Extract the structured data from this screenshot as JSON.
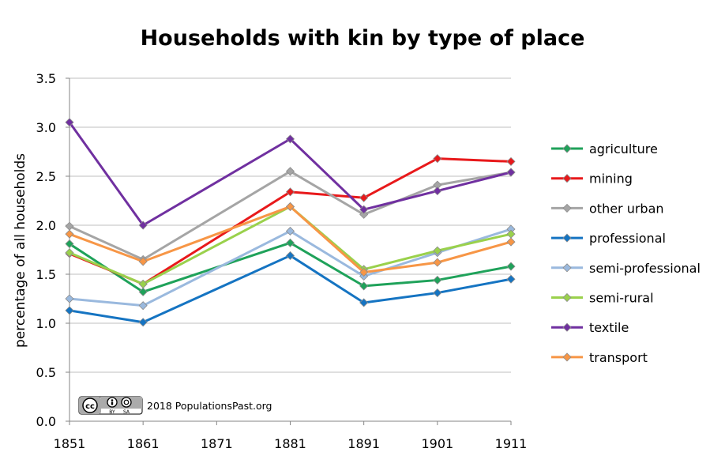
{
  "chart_data": {
    "type": "line",
    "title": "Households with kin by type of place",
    "ylabel": "percentage of all households",
    "xlabel": "",
    "x": [
      1851,
      1861,
      1871,
      1881,
      1891,
      1901,
      1911
    ],
    "x_ticks": [
      "1851",
      "1861",
      "1871",
      "1881",
      "1891",
      "1901",
      "1911"
    ],
    "ylim": [
      0,
      3.5
    ],
    "y_ticks": [
      "0.0",
      "0.5",
      "1.0",
      "1.5",
      "2.0",
      "2.5",
      "3.0",
      "3.5"
    ],
    "grid": "horizontal",
    "legend_position": "right",
    "series": [
      {
        "name": "agriculture",
        "color": "#1fa25a",
        "x": [
          1851,
          1861,
          1881,
          1891,
          1901,
          1911
        ],
        "values": [
          1.81,
          1.32,
          1.82,
          1.38,
          1.44,
          1.58
        ]
      },
      {
        "name": "mining",
        "color": "#e8191b",
        "x": [
          1851,
          1861,
          1881,
          1891,
          1901,
          1911
        ],
        "values": [
          1.71,
          1.4,
          2.34,
          2.28,
          2.68,
          2.65
        ]
      },
      {
        "name": "other urban",
        "color": "#a5a5a5",
        "x": [
          1851,
          1861,
          1881,
          1891,
          1901,
          1911
        ],
        "values": [
          1.99,
          1.65,
          2.55,
          2.11,
          2.41,
          2.54
        ]
      },
      {
        "name": "professional",
        "color": "#1574c2",
        "x": [
          1851,
          1861,
          1881,
          1891,
          1901,
          1911
        ],
        "values": [
          1.13,
          1.01,
          1.69,
          1.21,
          1.31,
          1.45
        ]
      },
      {
        "name": "semi-professional",
        "color": "#9ab9de",
        "x": [
          1851,
          1861,
          1881,
          1891,
          1901,
          1911
        ],
        "values": [
          1.25,
          1.18,
          1.94,
          1.48,
          1.72,
          1.96
        ]
      },
      {
        "name": "semi-rural",
        "color": "#9ad14c",
        "x": [
          1851,
          1861,
          1881,
          1891,
          1901,
          1911
        ],
        "values": [
          1.72,
          1.4,
          2.19,
          1.55,
          1.74,
          1.91
        ]
      },
      {
        "name": "textile",
        "color": "#7030a0",
        "x": [
          1851,
          1861,
          1881,
          1891,
          1901,
          1911
        ],
        "values": [
          3.05,
          2.0,
          2.88,
          2.16,
          2.35,
          2.54
        ]
      },
      {
        "name": "transport",
        "color": "#f79646",
        "x": [
          1851,
          1861,
          1881,
          1891,
          1901,
          1911
        ],
        "values": [
          1.91,
          1.63,
          2.19,
          1.52,
          1.62,
          1.83
        ]
      }
    ]
  },
  "credit": {
    "badge_left": "cc",
    "badge_by": "BY",
    "badge_sa": "SA",
    "text": "2018 PopulationsPast.org"
  }
}
